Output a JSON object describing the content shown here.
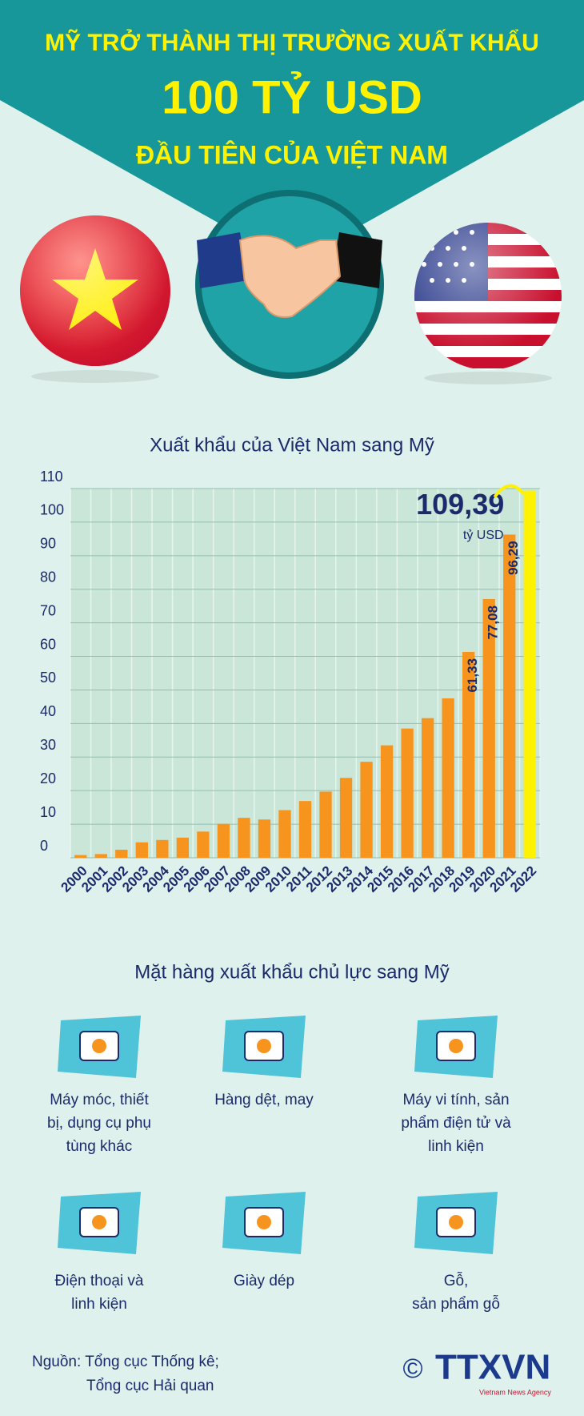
{
  "header": {
    "line1": "MỸ TRỞ THÀNH THỊ TRƯỜNG XUẤT KHẨU",
    "line2": "100 TỶ USD",
    "line3": "ĐẦU TIÊN CỦA VIỆT NAM"
  },
  "chart_data": {
    "type": "bar",
    "title": "Xuất khẩu của Việt Nam sang Mỹ",
    "categories": [
      "2000",
      "2001",
      "2002",
      "2003",
      "2004",
      "2005",
      "2006",
      "2007",
      "2008",
      "2009",
      "2010",
      "2011",
      "2012",
      "2013",
      "2014",
      "2015",
      "2016",
      "2017",
      "2018",
      "2019",
      "2020",
      "2021",
      "2022"
    ],
    "values": [
      0.8,
      1.1,
      2.4,
      4.6,
      5.3,
      6.0,
      7.8,
      10.1,
      11.9,
      11.4,
      14.2,
      16.9,
      19.7,
      23.8,
      28.6,
      33.5,
      38.5,
      41.6,
      47.5,
      61.33,
      77.08,
      96.29,
      109.39
    ],
    "value_labels": [
      null,
      null,
      null,
      null,
      null,
      null,
      null,
      null,
      null,
      null,
      null,
      null,
      null,
      null,
      null,
      null,
      null,
      null,
      null,
      "61,33",
      "77,08",
      "96,29",
      "109,39"
    ],
    "colors": [
      "#f7941d",
      "#f7941d",
      "#f7941d",
      "#f7941d",
      "#f7941d",
      "#f7941d",
      "#f7941d",
      "#f7941d",
      "#f7941d",
      "#f7941d",
      "#f7941d",
      "#f7941d",
      "#f7941d",
      "#f7941d",
      "#f7941d",
      "#f7941d",
      "#f7941d",
      "#f7941d",
      "#f7941d",
      "#f7941d",
      "#f7941d",
      "#f7941d",
      "#fff200"
    ],
    "unit": "tỷ USD",
    "ylim": [
      0,
      110
    ],
    "yticks": [
      0,
      10,
      20,
      30,
      40,
      50,
      60,
      70,
      80,
      90,
      100,
      110
    ],
    "grid": true
  },
  "products": {
    "title": "Mặt hàng xuất khẩu chủ lực sang Mỹ",
    "items": [
      {
        "lines": [
          "Máy móc, thiết",
          "bị, dụng cụ phụ",
          "tùng khác"
        ]
      },
      {
        "lines": [
          "Hàng dệt, may"
        ]
      },
      {
        "lines": [
          "Máy vi tính, sản",
          "phẩm điện tử và",
          "linh kiện"
        ]
      },
      {
        "lines": [
          "Điện thoại và",
          "linh kiện"
        ]
      },
      {
        "lines": [
          "Giày dép"
        ]
      },
      {
        "lines": [
          "Gỗ,",
          "sản phẩm gỗ"
        ]
      }
    ]
  },
  "source": {
    "lines": [
      "Nguồn: Tổng cục Thống kê;",
      "Tổng cục Hải quan"
    ]
  },
  "logo": {
    "symbol": "©",
    "text": "TTXVN",
    "subtitle": "Vietnam News Agency"
  }
}
